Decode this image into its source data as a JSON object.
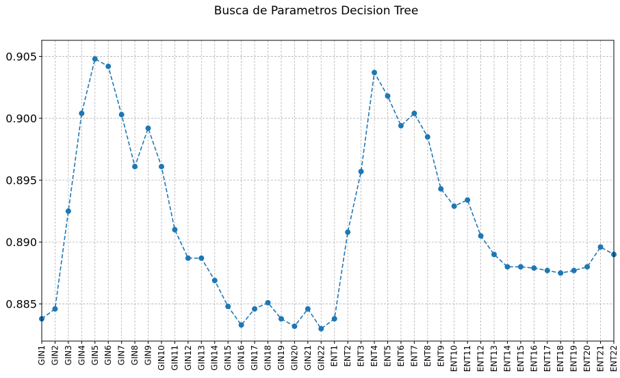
{
  "chart_data": {
    "type": "line",
    "title": "Busca de Parametros Decision Tree",
    "xlabel": "",
    "ylabel": "",
    "categories": [
      "GIN1",
      "GIN2",
      "GIN3",
      "GIN4",
      "GIN5",
      "GIN6",
      "GIN7",
      "GIN8",
      "GIN9",
      "GIN10",
      "GIN11",
      "GIN12",
      "GIN13",
      "GIN14",
      "GIN15",
      "GIN16",
      "GIN17",
      "GIN18",
      "GIN19",
      "GIN20",
      "GIN21",
      "GIN22",
      "ENT1",
      "ENT2",
      "ENT3",
      "ENT4",
      "ENT5",
      "ENT6",
      "ENT7",
      "ENT8",
      "ENT9",
      "ENT10",
      "ENT11",
      "ENT12",
      "ENT13",
      "ENT14",
      "ENT15",
      "ENT16",
      "ENT17",
      "ENT18",
      "ENT19",
      "ENT20",
      "ENT21",
      "ENT22"
    ],
    "values": [
      0.8838,
      0.8846,
      0.8925,
      0.9004,
      0.9048,
      0.9042,
      0.9003,
      0.8961,
      0.8992,
      0.8961,
      0.891,
      0.8887,
      0.8887,
      0.8869,
      0.8848,
      0.8833,
      0.8846,
      0.8851,
      0.8838,
      0.8832,
      0.8846,
      0.883,
      0.8838,
      0.8908,
      0.8957,
      0.9037,
      0.9018,
      0.8994,
      0.9004,
      0.8985,
      0.8943,
      0.8929,
      0.8934,
      0.8905,
      0.889,
      0.888,
      0.888,
      0.8879,
      0.8877,
      0.8875,
      0.8877,
      0.888,
      0.8896,
      0.889
    ],
    "yticks": [
      "0.885",
      "0.890",
      "0.895",
      "0.900",
      "0.905"
    ],
    "ylim": [
      0.882,
      0.9063
    ],
    "grid": true,
    "legend": "none",
    "line_style": "dashed",
    "marker": "circle",
    "color": "#1f77b4"
  }
}
